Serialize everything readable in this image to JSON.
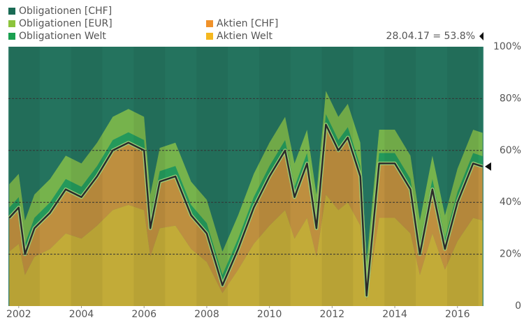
{
  "chart_data": {
    "type": "stacked_area",
    "annotation": "28.04.17 = 53.8%",
    "x": [
      2001.7,
      2002.0,
      2002.2,
      2002.5,
      2003.0,
      2003.5,
      2004.0,
      2004.5,
      2005.0,
      2005.5,
      2006.0,
      2006.2,
      2006.5,
      2007.0,
      2007.5,
      2008.0,
      2008.5,
      2009.0,
      2009.5,
      2010.0,
      2010.5,
      2010.8,
      2011.2,
      2011.5,
      2011.8,
      2012.2,
      2012.5,
      2012.9,
      2013.1,
      2013.5,
      2014.0,
      2014.5,
      2014.8,
      2015.2,
      2015.6,
      2016.0,
      2016.5,
      2016.8
    ],
    "series": [
      {
        "name": "Obligationen [CHF]",
        "color": "#1a6b55",
        "values": [
          53,
          49,
          67,
          57,
          51,
          42,
          45,
          37,
          27,
          24,
          27,
          57,
          39,
          37,
          52,
          59,
          79,
          65,
          49,
          37,
          27,
          45,
          32,
          57,
          17,
          27,
          22,
          37,
          83,
          32,
          32,
          42,
          67,
          42,
          65,
          47,
          32,
          33.2
        ]
      },
      {
        "name": "Obligationen [EUR]",
        "color": "#8cc43c",
        "values": [
          9,
          9,
          9,
          9,
          9,
          9,
          9,
          9,
          9,
          9,
          9,
          9,
          9,
          9,
          9,
          9,
          9,
          9,
          9,
          9,
          9,
          9,
          9,
          9,
          9,
          9,
          9,
          9,
          9,
          9,
          9,
          9,
          9,
          9,
          9,
          9,
          9,
          9
        ]
      },
      {
        "name": "Obligationen Welt",
        "color": "#1aa050",
        "values": [
          4,
          4,
          4,
          4,
          4,
          4,
          4,
          4,
          4,
          4,
          4,
          4,
          4,
          4,
          4,
          4,
          4,
          4,
          4,
          4,
          4,
          4,
          4,
          4,
          4,
          4,
          4,
          4,
          4,
          4,
          4,
          4,
          4,
          4,
          4,
          4,
          4,
          4
        ]
      },
      {
        "name": "Aktien [CHF]",
        "color": "#f0922a",
        "values": [
          13,
          14,
          8,
          11,
          14,
          17,
          16,
          19,
          23,
          24,
          23,
          11,
          18,
          19,
          13,
          11,
          3,
          8,
          14,
          19,
          23,
          16,
          21,
          11,
          27,
          23,
          25,
          19,
          2,
          21,
          21,
          17,
          8,
          17,
          8,
          15,
          21,
          20.8
        ]
      },
      {
        "name": "Aktien Welt",
        "color": "#f5b820",
        "values": [
          21,
          24,
          12,
          19,
          22,
          28,
          26,
          31,
          37,
          39,
          37,
          19,
          30,
          31,
          22,
          17,
          5,
          14,
          24,
          31,
          37,
          26,
          34,
          19,
          43,
          37,
          40,
          31,
          2,
          34,
          34,
          28,
          12,
          28,
          14,
          25,
          34,
          33
        ]
      }
    ],
    "xlim": [
      2001.67,
      2016.83
    ],
    "xticks": [
      2002,
      2004,
      2006,
      2008,
      2010,
      2012,
      2014,
      2016
    ],
    "ylim": [
      0,
      100
    ],
    "yticks": [
      0,
      {
        "value": 20,
        "label": "20%"
      },
      {
        "value": 40,
        "label": "40%"
      },
      {
        "value": 60,
        "label": "60%"
      },
      {
        "value": 80,
        "label": "80%"
      },
      {
        "value": 100,
        "label": "100%"
      }
    ],
    "grid": true
  }
}
